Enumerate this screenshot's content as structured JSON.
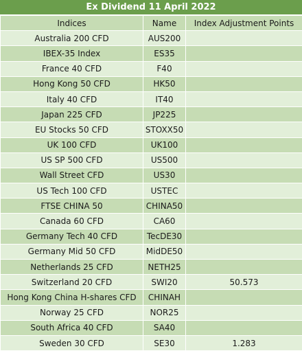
{
  "title": "Ex Dividend 11 April 2022",
  "headers": {
    "indices": "Indices",
    "name": "Name",
    "points": "Index Adjustment Points"
  },
  "colors": {
    "title_bg": "#6b9e4c",
    "row_light": "#e2efd9",
    "row_dark": "#c6dcb4"
  },
  "rows": [
    {
      "index": "Australia 200 CFD",
      "name": "AUS200",
      "points": ""
    },
    {
      "index": "IBEX-35 Index",
      "name": "ES35",
      "points": ""
    },
    {
      "index": "France 40 CFD",
      "name": "F40",
      "points": ""
    },
    {
      "index": "Hong Kong 50 CFD",
      "name": "HK50",
      "points": ""
    },
    {
      "index": "Italy 40 CFD",
      "name": "IT40",
      "points": ""
    },
    {
      "index": "Japan 225 CFD",
      "name": "JP225",
      "points": ""
    },
    {
      "index": "EU Stocks 50 CFD",
      "name": "STOXX50",
      "points": ""
    },
    {
      "index": "UK 100 CFD",
      "name": "UK100",
      "points": ""
    },
    {
      "index": "US SP 500 CFD",
      "name": "US500",
      "points": ""
    },
    {
      "index": "Wall Street CFD",
      "name": "US30",
      "points": ""
    },
    {
      "index": "US Tech 100 CFD",
      "name": "USTEC",
      "points": ""
    },
    {
      "index": "FTSE CHINA 50",
      "name": "CHINA50",
      "points": ""
    },
    {
      "index": "Canada 60 CFD",
      "name": "CA60",
      "points": ""
    },
    {
      "index": "Germany Tech 40 CFD",
      "name": "TecDE30",
      "points": ""
    },
    {
      "index": "Germany Mid 50 CFD",
      "name": "MidDE50",
      "points": ""
    },
    {
      "index": "Netherlands 25 CFD",
      "name": "NETH25",
      "points": ""
    },
    {
      "index": "Switzerland 20 CFD",
      "name": "SWI20",
      "points": "50.573"
    },
    {
      "index": "Hong Kong China H-shares CFD",
      "name": "CHINAH",
      "points": ""
    },
    {
      "index": "Norway 25 CFD",
      "name": "NOR25",
      "points": ""
    },
    {
      "index": "South Africa 40 CFD",
      "name": "SA40",
      "points": ""
    },
    {
      "index": "Sweden 30 CFD",
      "name": "SE30",
      "points": "1.283"
    }
  ]
}
